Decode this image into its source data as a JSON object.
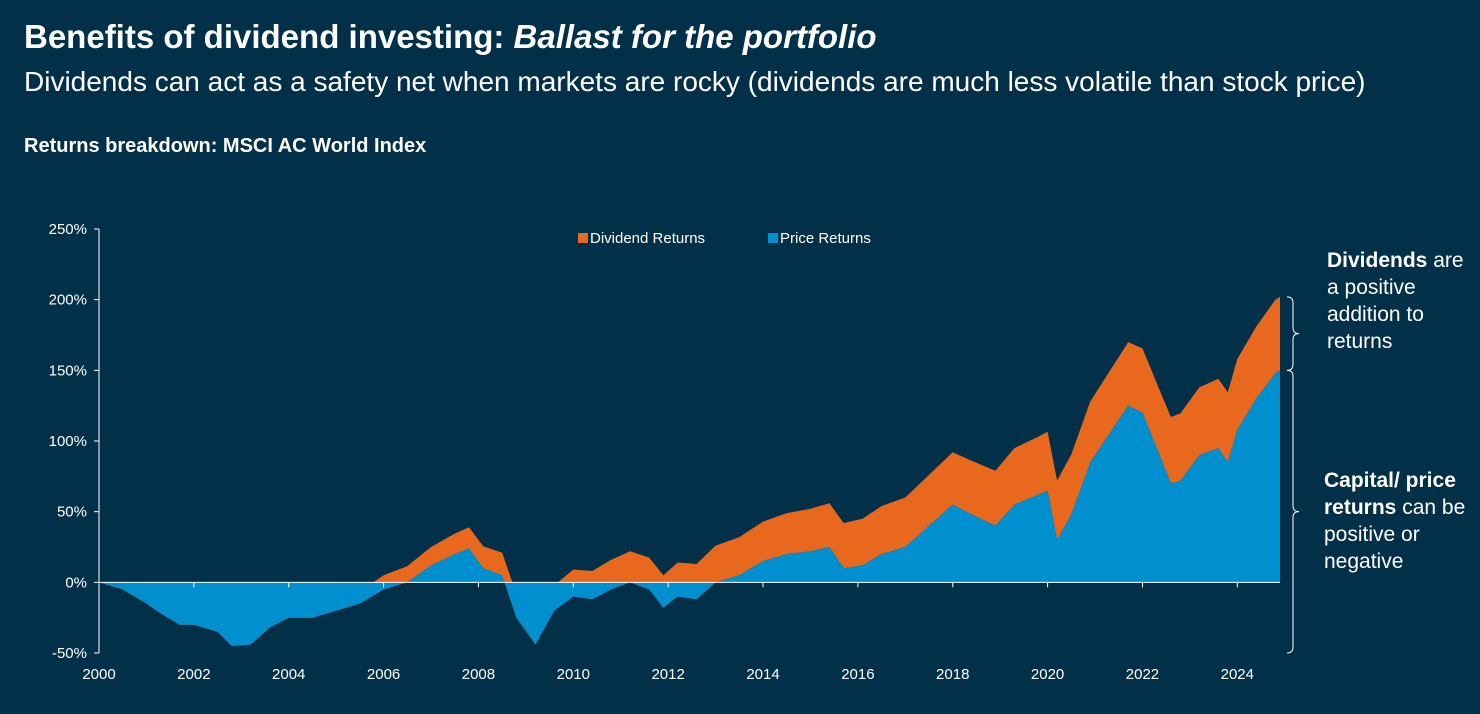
{
  "header": {
    "title_main": "Benefits of dividend investing: ",
    "title_italic": "Ballast for the portfolio",
    "subtitle": "Dividends can act as a safety net when markets are rocky (dividends are much less volatile than stock price)"
  },
  "colors": {
    "background": "#023049",
    "dividend": "#E8681E",
    "price": "#0090D0",
    "text": "#FFFFFF"
  },
  "annotations": {
    "dividends_bold": "Dividends",
    "dividends_rest": " are a positive addition to returns",
    "capital_bold": "Capital/ price returns",
    "capital_rest": " can be positive or negative"
  },
  "chart_data": {
    "type": "area",
    "title": "Returns breakdown: MSCI AC World Index",
    "xlabel": "",
    "ylabel": "",
    "xlim": [
      2000,
      2024.9
    ],
    "ylim": [
      -50,
      250
    ],
    "y_ticks": [
      "-50%",
      "0%",
      "50%",
      "100%",
      "150%",
      "200%",
      "250%"
    ],
    "y_tick_values": [
      -50,
      0,
      50,
      100,
      150,
      200,
      250
    ],
    "x_ticks": [
      "2000",
      "2002",
      "2004",
      "2006",
      "2008",
      "2010",
      "2012",
      "2014",
      "2016",
      "2018",
      "2020",
      "2022",
      "2024"
    ],
    "x_tick_values": [
      2000,
      2002,
      2004,
      2006,
      2008,
      2010,
      2012,
      2014,
      2016,
      2018,
      2020,
      2022,
      2024
    ],
    "legend": [
      "Dividend Returns",
      "Price Returns"
    ],
    "legend_position": "top-center",
    "grid": false,
    "x": [
      2000.0,
      2000.5,
      2001.0,
      2001.3,
      2001.7,
      2002.0,
      2002.5,
      2002.8,
      2003.2,
      2003.6,
      2004.0,
      2004.5,
      2005.0,
      2005.5,
      2006.0,
      2006.5,
      2007.0,
      2007.5,
      2007.8,
      2008.1,
      2008.5,
      2008.8,
      2009.2,
      2009.6,
      2010.0,
      2010.4,
      2010.8,
      2011.2,
      2011.6,
      2011.9,
      2012.2,
      2012.6,
      2013.0,
      2013.5,
      2014.0,
      2014.5,
      2015.0,
      2015.4,
      2015.7,
      2016.1,
      2016.5,
      2017.0,
      2017.5,
      2018.0,
      2018.4,
      2018.9,
      2019.3,
      2019.8,
      2020.0,
      2020.2,
      2020.5,
      2020.9,
      2021.3,
      2021.7,
      2022.0,
      2022.3,
      2022.6,
      2022.8,
      2023.2,
      2023.6,
      2023.8,
      2024.0,
      2024.4,
      2024.8,
      2024.9
    ],
    "series": [
      {
        "name": "Price Returns",
        "values": [
          0,
          -5,
          -15,
          -22,
          -30,
          -30,
          -35,
          -45,
          -44,
          -32,
          -25,
          -25,
          -20,
          -15,
          -5,
          0,
          12,
          20,
          24,
          10,
          5,
          -25,
          -44,
          -20,
          -10,
          -12,
          -5,
          0,
          -5,
          -18,
          -10,
          -12,
          0,
          5,
          15,
          20,
          22,
          25,
          10,
          12,
          20,
          25,
          40,
          55,
          48,
          40,
          55,
          62,
          65,
          30,
          48,
          85,
          105,
          125,
          120,
          95,
          70,
          72,
          90,
          95,
          85,
          108,
          130,
          148,
          150
        ]
      },
      {
        "name": "Dividend Returns",
        "values": [
          0,
          0.5,
          1,
          1.3,
          1.7,
          2,
          2.5,
          2.8,
          3.2,
          3.6,
          5,
          5.8,
          7,
          8.5,
          10,
          11.5,
          13,
          14.5,
          15,
          15.5,
          16,
          16.5,
          17,
          18,
          19,
          20,
          21,
          22,
          22.5,
          23,
          24,
          25,
          26,
          27,
          28,
          29,
          30,
          31,
          32,
          33,
          34,
          35,
          36,
          37,
          38,
          39,
          40,
          41,
          41.5,
          42,
          42.5,
          43,
          44,
          45,
          45.5,
          46,
          47,
          47.5,
          48,
          49,
          49.5,
          50,
          51,
          52,
          52
        ]
      }
    ]
  }
}
